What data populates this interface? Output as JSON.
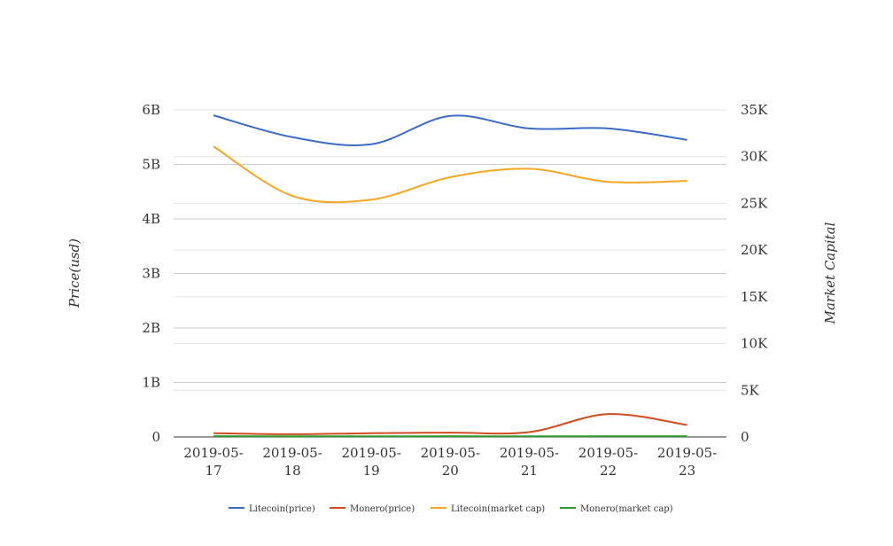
{
  "chart_data": {
    "type": "line",
    "x": [
      "2019-05-17",
      "2019-05-18",
      "2019-05-19",
      "2019-05-20",
      "2019-05-21",
      "2019-05-22",
      "2019-05-23"
    ],
    "x_tick_labels": [
      [
        "2019-05-",
        "17"
      ],
      [
        "2019-05-",
        "18"
      ],
      [
        "2019-05-",
        "19"
      ],
      [
        "2019-05-",
        "20"
      ],
      [
        "2019-05-",
        "21"
      ],
      [
        "2019-05-",
        "22"
      ],
      [
        "2019-05-",
        "23"
      ]
    ],
    "ylabel": "Price(usd)",
    "y2label": "Market Capital",
    "ylim": [
      0,
      6000000000
    ],
    "y2lim": [
      0,
      35000
    ],
    "y_ticks": [
      0,
      1000000000,
      2000000000,
      3000000000,
      4000000000,
      5000000000,
      6000000000
    ],
    "y_tick_labels": [
      "0",
      "1B",
      "2B",
      "3B",
      "4B",
      "5B",
      "6B"
    ],
    "y2_ticks": [
      0,
      5000,
      10000,
      15000,
      20000,
      25000,
      30000,
      35000
    ],
    "y2_tick_labels": [
      "0",
      "5K",
      "10K",
      "15K",
      "20K",
      "25K",
      "30K",
      "35K"
    ],
    "grid": true,
    "legend_position": "bottom",
    "series": [
      {
        "name": "Litecoin(price)",
        "axis": "left",
        "color": "#3a6bc5",
        "values": [
          5900000000,
          5500000000,
          5370000000,
          5890000000,
          5660000000,
          5660000000,
          5450000000
        ]
      },
      {
        "name": "Monero(price)",
        "axis": "left",
        "color": "#d24a1f",
        "values": [
          70000000,
          50000000,
          70000000,
          80000000,
          90000000,
          420000000,
          220000000
        ]
      },
      {
        "name": "Litecoin(market cap)",
        "axis": "right",
        "color": "#f5a623",
        "values": [
          31100,
          25800,
          25400,
          27800,
          28700,
          27300,
          27400
        ]
      },
      {
        "name": "Monero(market cap)",
        "axis": "right",
        "color": "#2e9a2e",
        "values": [
          80,
          70,
          70,
          80,
          70,
          80,
          80
        ]
      }
    ]
  }
}
